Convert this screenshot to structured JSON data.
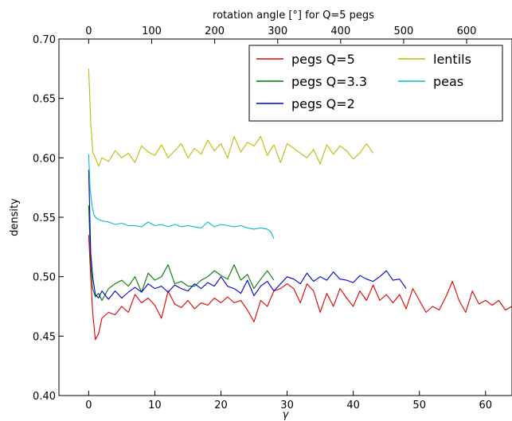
{
  "chart_data": {
    "type": "line",
    "xlabel": "γ",
    "ylabel": "density",
    "top_xlabel": "rotation angle [°] for Q=5 pegs",
    "xlim": [
      -4.5,
      64
    ],
    "ylim": [
      0.4,
      0.7
    ],
    "x_ticks": [
      0,
      10,
      20,
      30,
      40,
      50,
      60
    ],
    "y_ticks": [
      "0.40",
      "0.45",
      "0.50",
      "0.55",
      "0.60",
      "0.65",
      "0.70"
    ],
    "top_ticks": [
      0,
      100,
      200,
      300,
      400,
      500,
      600
    ],
    "top_axis_factor": 10.5,
    "grid": false,
    "legend_position": "top-right",
    "legend_columns": 2,
    "series": [
      {
        "name": "pegs Q=5",
        "color": "#dd0000",
        "x": [
          0,
          0.3,
          0.6,
          1.0,
          1.5,
          2,
          3,
          4,
          5,
          6,
          7,
          8,
          9,
          10,
          11,
          12,
          13,
          14,
          15,
          16,
          17,
          18,
          19,
          20,
          21,
          22,
          23,
          24,
          25,
          26,
          27,
          28,
          29,
          30,
          31,
          32,
          33,
          34,
          35,
          36,
          37,
          38,
          39,
          40,
          41,
          42,
          43,
          44,
          45,
          46,
          47,
          48,
          49,
          50,
          51,
          52,
          53,
          54,
          55,
          56,
          57,
          58,
          59,
          60,
          61,
          62,
          63,
          64
        ],
        "y": [
          0.535,
          0.5,
          0.47,
          0.447,
          0.452,
          0.465,
          0.47,
          0.468,
          0.475,
          0.47,
          0.485,
          0.478,
          0.482,
          0.476,
          0.465,
          0.488,
          0.477,
          0.474,
          0.48,
          0.473,
          0.478,
          0.476,
          0.482,
          0.478,
          0.483,
          0.478,
          0.48,
          0.472,
          0.462,
          0.48,
          0.475,
          0.488,
          0.49,
          0.494,
          0.49,
          0.478,
          0.494,
          0.488,
          0.47,
          0.486,
          0.475,
          0.49,
          0.482,
          0.475,
          0.488,
          0.48,
          0.493,
          0.48,
          0.485,
          0.478,
          0.485,
          0.473,
          0.49,
          0.48,
          0.47,
          0.475,
          0.472,
          0.483,
          0.496,
          0.48,
          0.47,
          0.488,
          0.477,
          0.48,
          0.476,
          0.48,
          0.472,
          0.475
        ]
      },
      {
        "name": "pegs Q=3.3",
        "color": "#007700",
        "x": [
          0,
          0.3,
          0.6,
          1.0,
          1.5,
          2,
          3,
          4,
          5,
          6,
          7,
          8,
          9,
          10,
          11,
          12,
          13,
          14,
          15,
          16,
          17,
          18,
          19,
          20,
          21,
          22,
          23,
          24,
          25,
          26,
          27,
          28
        ],
        "y": [
          0.56,
          0.51,
          0.49,
          0.483,
          0.486,
          0.48,
          0.49,
          0.494,
          0.497,
          0.492,
          0.5,
          0.487,
          0.503,
          0.497,
          0.5,
          0.51,
          0.494,
          0.496,
          0.492,
          0.492,
          0.497,
          0.5,
          0.505,
          0.501,
          0.498,
          0.51,
          0.497,
          0.502,
          0.49,
          0.498,
          0.505,
          0.497
        ]
      },
      {
        "name": "pegs Q=2",
        "color": "#0000cc",
        "x": [
          0,
          0.3,
          0.6,
          1.0,
          1.5,
          2,
          3,
          4,
          5,
          6,
          7,
          8,
          9,
          10,
          11,
          12,
          13,
          14,
          15,
          16,
          17,
          18,
          19,
          20,
          21,
          22,
          23,
          24,
          25,
          26,
          27,
          28,
          29,
          30,
          31,
          32,
          33,
          34,
          35,
          36,
          37,
          38,
          39,
          40,
          41,
          42,
          43,
          44,
          45,
          46,
          47,
          48
        ],
        "y": [
          0.59,
          0.52,
          0.5,
          0.485,
          0.482,
          0.488,
          0.481,
          0.488,
          0.482,
          0.487,
          0.491,
          0.487,
          0.494,
          0.49,
          0.492,
          0.487,
          0.493,
          0.49,
          0.488,
          0.494,
          0.49,
          0.495,
          0.492,
          0.5,
          0.492,
          0.49,
          0.486,
          0.497,
          0.484,
          0.492,
          0.496,
          0.488,
          0.494,
          0.5,
          0.498,
          0.494,
          0.503,
          0.496,
          0.5,
          0.497,
          0.504,
          0.498,
          0.497,
          0.495,
          0.501,
          0.498,
          0.496,
          0.5,
          0.505,
          0.497,
          0.498,
          0.49
        ]
      },
      {
        "name": "lentils",
        "color": "#bbbb00",
        "x": [
          0,
          0.3,
          0.6,
          1.0,
          1.5,
          2,
          3,
          4,
          5,
          6,
          7,
          8,
          9,
          10,
          11,
          12,
          13,
          14,
          15,
          16,
          17,
          18,
          19,
          20,
          21,
          22,
          23,
          24,
          25,
          26,
          27,
          28,
          29,
          30,
          31,
          32,
          33,
          34,
          35,
          36,
          37,
          38,
          39,
          40,
          41,
          42,
          43
        ],
        "y": [
          0.675,
          0.63,
          0.605,
          0.6,
          0.593,
          0.6,
          0.597,
          0.606,
          0.6,
          0.604,
          0.596,
          0.61,
          0.605,
          0.602,
          0.611,
          0.6,
          0.606,
          0.612,
          0.6,
          0.608,
          0.603,
          0.615,
          0.606,
          0.612,
          0.6,
          0.618,
          0.605,
          0.613,
          0.61,
          0.618,
          0.602,
          0.611,
          0.596,
          0.612,
          0.608,
          0.604,
          0.6,
          0.607,
          0.595,
          0.611,
          0.603,
          0.61,
          0.606,
          0.599,
          0.604,
          0.612,
          0.604
        ]
      },
      {
        "name": "peas",
        "color": "#00bbbb",
        "x": [
          0,
          0.2,
          0.5,
          0.8,
          1.2,
          2,
          3,
          4,
          5,
          6,
          7,
          8,
          9,
          10,
          11,
          12,
          13,
          14,
          15,
          16,
          17,
          18,
          19,
          20,
          21,
          22,
          23,
          24,
          25,
          26,
          27,
          27.5,
          28
        ],
        "y": [
          0.603,
          0.575,
          0.56,
          0.552,
          0.549,
          0.547,
          0.546,
          0.544,
          0.545,
          0.543,
          0.543,
          0.542,
          0.546,
          0.543,
          0.544,
          0.542,
          0.544,
          0.542,
          0.543,
          0.542,
          0.541,
          0.546,
          0.542,
          0.544,
          0.543,
          0.542,
          0.543,
          0.541,
          0.54,
          0.541,
          0.54,
          0.538,
          0.532
        ]
      }
    ]
  }
}
